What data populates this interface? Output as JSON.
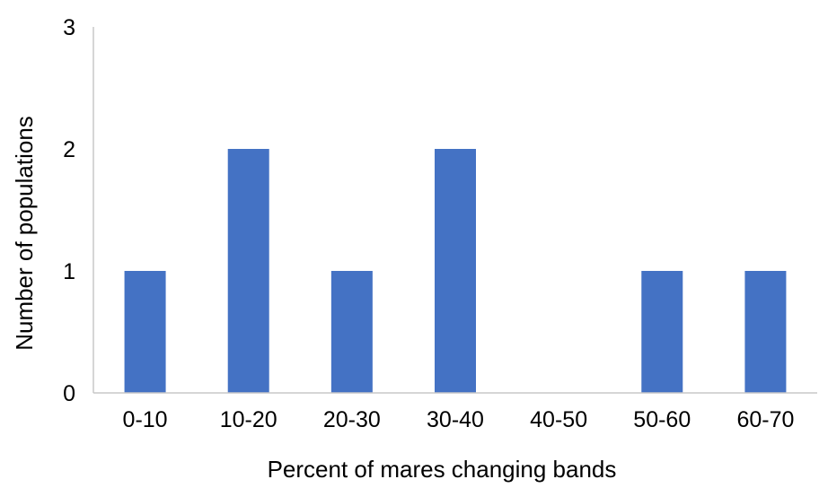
{
  "chart_data": {
    "type": "bar",
    "title": "",
    "xlabel": "Percent of mares changing bands",
    "ylabel": "Number of populations",
    "categories": [
      "0-10",
      "10-20",
      "20-30",
      "30-40",
      "40-50",
      "50-60",
      "60-70"
    ],
    "values": [
      1,
      2,
      1,
      2,
      0,
      1,
      1
    ],
    "ylim": [
      0,
      3
    ],
    "yticks": [
      "0",
      "1",
      "2",
      "3"
    ],
    "grid": false,
    "legend": "none",
    "bar_color": "#4472c4"
  }
}
